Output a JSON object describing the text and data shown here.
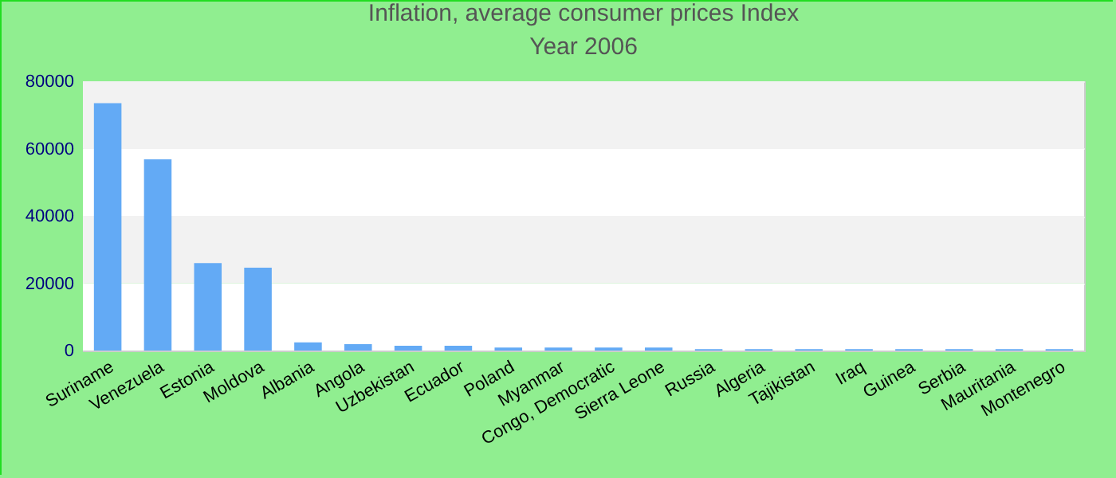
{
  "chart_data": {
    "type": "bar",
    "title": "Inflation, average consumer prices  Index",
    "subtitle": "Year 2006",
    "categories": [
      "Suriname",
      "Venezuela",
      "Estonia",
      "Moldova",
      "Albania",
      "Angola",
      "Uzbekistan",
      "Ecuador",
      "Poland",
      "Myanmar",
      "Congo, Democratic",
      "Sierra Leone",
      "Russia",
      "Algeria",
      "Tajikistan",
      "Iraq",
      "Guinea",
      "Serbia",
      "Mauritania",
      "Montenegro"
    ],
    "values": [
      73500,
      56800,
      26000,
      24600,
      2400,
      1900,
      1400,
      1400,
      900,
      900,
      900,
      900,
      400,
      400,
      400,
      400,
      400,
      400,
      400,
      400
    ],
    "color": "#63aaf5",
    "ylim": [
      0,
      80000
    ],
    "yticks": [
      0,
      20000,
      40000,
      60000,
      80000
    ],
    "grid": true
  }
}
